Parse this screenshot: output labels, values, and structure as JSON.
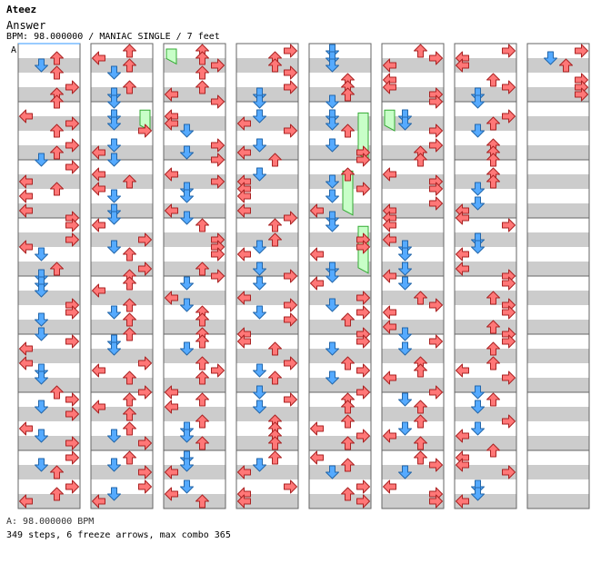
{
  "song": {
    "artist": "Ateez",
    "title": "Answer",
    "info_line": "BPM: 98.000000 / MANIAC SINGLE / 7 feet",
    "bpm_line": "A: 98.000000 BPM",
    "stats_line": "349 steps, 6 freeze arrows, max combo 365"
  },
  "chart_data": {
    "type": "step-chart",
    "title": "Answer",
    "artist": "Ateez",
    "bpm": 98.0,
    "difficulty": "MANIAC",
    "style": "SINGLE",
    "feet": 7,
    "steps": 349,
    "freeze_arrows": 6,
    "max_combo": 365,
    "bpm_label": "A",
    "measures_per_column": 8,
    "columns": 8,
    "last_column_measures": 1,
    "lanes": [
      "left",
      "down",
      "up",
      "right"
    ],
    "colors": {
      "left": "#ff7777",
      "down": "#55aaff",
      "up": "#ff7777",
      "right": "#ff7777",
      "freeze": "#c8ffc8",
      "stripe": "#cccccc"
    },
    "freezes": [
      {
        "col": 2,
        "lane": 0,
        "start": 0.0,
        "end": 0.35
      },
      {
        "col": 1,
        "lane": 3,
        "start": 1.05,
        "end": 1.5
      },
      {
        "col": 4,
        "lane": 3,
        "start": 1.1,
        "end": 2.0
      },
      {
        "col": 4,
        "lane": 2,
        "start": 2.1,
        "end": 2.95
      },
      {
        "col": 4,
        "lane": 3,
        "start": 3.05,
        "end": 3.95
      },
      {
        "col": 5,
        "lane": 0,
        "start": 1.05,
        "end": 1.5
      }
    ]
  }
}
